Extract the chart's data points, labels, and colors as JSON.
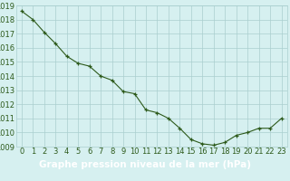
{
  "x": [
    0,
    1,
    2,
    3,
    4,
    5,
    6,
    7,
    8,
    9,
    10,
    11,
    12,
    13,
    14,
    15,
    16,
    17,
    18,
    19,
    20,
    21,
    22,
    23
  ],
  "y": [
    1018.6,
    1018.0,
    1017.1,
    1016.3,
    1015.4,
    1014.9,
    1014.7,
    1014.0,
    1013.7,
    1012.9,
    1012.75,
    1011.6,
    1011.4,
    1011.0,
    1010.3,
    1009.5,
    1009.2,
    1009.1,
    1009.3,
    1009.8,
    1010.0,
    1010.3,
    1010.3,
    1011.0
  ],
  "ylim": [
    1009,
    1019
  ],
  "xlim_min": -0.5,
  "xlim_max": 23.5,
  "yticks": [
    1009,
    1010,
    1011,
    1012,
    1013,
    1014,
    1015,
    1016,
    1017,
    1018,
    1019
  ],
  "xticks": [
    0,
    1,
    2,
    3,
    4,
    5,
    6,
    7,
    8,
    9,
    10,
    11,
    12,
    13,
    14,
    15,
    16,
    17,
    18,
    19,
    20,
    21,
    22,
    23
  ],
  "line_color": "#2d5a1b",
  "marker_color": "#2d5a1b",
  "bg_color": "#d6f0f0",
  "grid_color": "#aacece",
  "xlabel": "Graphe pression niveau de la mer (hPa)",
  "xlabel_bg": "#2d5a1b",
  "xlabel_text_color": "#ffffff",
  "tick_color": "#2d5a1b",
  "tick_label_fontsize": 6.0,
  "xlabel_fontsize": 7.5,
  "fig_width": 3.2,
  "fig_height": 2.0,
  "dpi": 100
}
